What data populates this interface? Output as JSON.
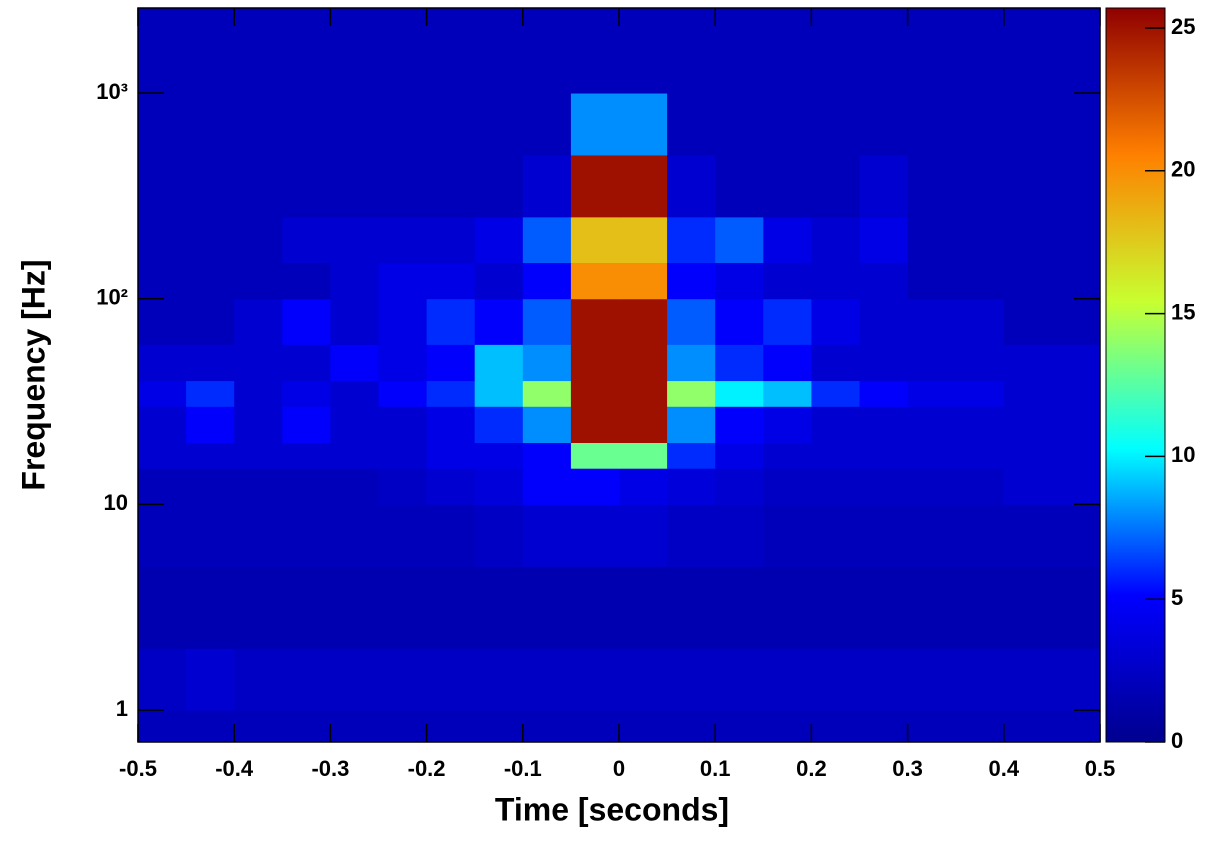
{
  "chart_data": {
    "type": "heatmap",
    "xlabel": "Time [seconds]",
    "ylabel": "Frequency [Hz]",
    "xlim": [
      -0.5,
      0.5
    ],
    "ylim": [
      0.7,
      2590
    ],
    "yscale": "log",
    "clim": [
      0,
      25.7
    ],
    "xticks": [
      -0.5,
      -0.4,
      -0.3,
      -0.2,
      -0.1,
      0,
      0.1,
      0.2,
      0.3,
      0.4,
      0.5
    ],
    "yticks": [
      1,
      10,
      {
        "value": 100,
        "label": "10²"
      },
      {
        "value": 1000,
        "label": "10³"
      }
    ],
    "cticks": [
      0,
      5,
      10,
      15,
      20,
      25
    ],
    "colormap": [
      "#00008f",
      "#0000ff",
      "#00ffff",
      "#c8ff30",
      "#ff8000",
      "#8f0000"
    ],
    "x_edges": [
      -0.5,
      -0.45,
      -0.4,
      -0.35,
      -0.3,
      -0.25,
      -0.2,
      -0.15,
      -0.1,
      -0.05,
      0,
      0.05,
      0.1,
      0.15,
      0.2,
      0.25,
      0.3,
      0.35,
      0.4,
      0.45,
      0.5
    ],
    "y_edges": [
      0.7,
      1,
      2,
      5,
      10,
      15,
      20,
      30,
      40,
      60,
      100,
      150,
      250,
      500,
      1000,
      2590
    ],
    "z": [
      [
        2,
        2,
        2,
        2,
        2,
        2,
        2,
        2,
        2,
        2,
        2,
        2,
        2,
        2,
        2,
        2,
        2,
        2,
        2,
        2
      ],
      [
        2.5,
        3,
        2.5,
        2.5,
        2.5,
        2.5,
        2.5,
        2.5,
        2.5,
        2.5,
        2.5,
        2.5,
        2.5,
        2.5,
        2.5,
        2.5,
        2.5,
        2.5,
        2.5,
        2.5
      ],
      [
        1.5,
        1.5,
        1.5,
        1.5,
        1.5,
        1.5,
        1.5,
        1.5,
        1.5,
        1.5,
        1.5,
        1.5,
        1.5,
        1.5,
        1.5,
        1.5,
        1.5,
        1.5,
        1.5,
        1.5
      ],
      [
        2,
        2,
        2,
        2,
        2,
        2,
        2,
        2.5,
        3,
        3,
        3,
        2.5,
        2.5,
        2,
        2,
        2,
        2,
        2,
        2,
        2
      ],
      [
        2,
        2,
        2,
        2,
        2,
        2.5,
        3,
        3.5,
        5,
        5,
        4,
        3.5,
        3,
        2.5,
        2.5,
        2.5,
        2.5,
        2.5,
        3,
        3
      ],
      [
        3,
        3,
        3,
        3,
        3,
        3,
        4,
        4,
        5,
        13,
        13,
        6,
        4,
        3,
        3,
        3,
        3,
        3,
        3,
        3
      ],
      [
        3,
        5,
        3,
        5,
        3,
        3,
        4,
        6,
        8,
        25,
        25,
        8,
        5,
        4,
        3,
        3,
        3,
        3,
        3,
        3
      ],
      [
        4,
        6,
        3,
        4,
        3,
        5,
        6,
        9,
        14,
        25,
        25,
        14,
        10,
        9,
        6,
        5,
        4,
        4,
        3,
        3
      ],
      [
        3,
        3,
        3,
        3,
        5,
        4,
        5,
        9,
        8,
        25,
        25,
        8,
        6,
        5,
        3,
        3,
        3,
        3,
        3,
        3
      ],
      [
        2,
        2,
        3,
        5,
        3,
        4,
        6,
        5,
        7,
        25,
        25,
        7,
        5,
        6,
        4,
        3,
        3,
        3,
        2,
        2
      ],
      [
        2,
        2,
        2,
        2,
        3,
        4,
        4,
        3,
        5,
        20,
        20,
        5,
        4,
        3,
        3,
        3,
        2,
        2,
        2,
        2
      ],
      [
        2,
        2,
        2,
        3,
        3,
        3,
        3,
        4,
        7,
        18,
        18,
        6,
        7,
        4,
        3,
        4,
        2,
        2,
        2,
        2
      ],
      [
        2,
        2,
        2,
        2,
        2,
        2,
        2,
        2,
        3,
        25,
        25,
        3,
        2,
        2,
        2,
        3,
        2,
        2,
        2,
        2
      ],
      [
        2,
        2,
        2,
        2,
        2,
        2,
        2,
        2,
        2,
        8,
        8,
        2,
        2,
        2,
        2,
        2,
        2,
        2,
        2,
        2
      ],
      [
        2,
        2,
        2,
        2,
        2,
        2,
        2,
        2,
        2,
        2,
        2,
        2,
        2,
        2,
        2,
        2,
        2,
        2,
        2,
        2
      ]
    ]
  }
}
